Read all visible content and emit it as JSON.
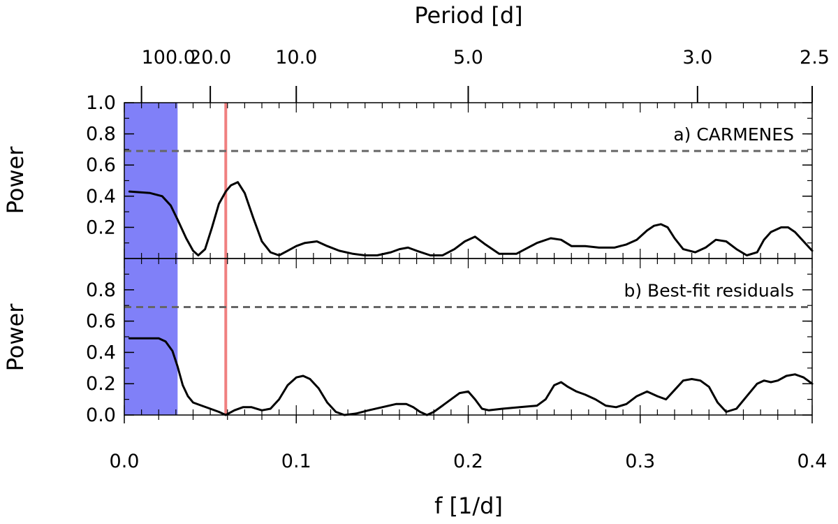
{
  "chart_data": {
    "type": "line",
    "top_axis": {
      "label": "Period [d]",
      "ticks": [
        {
          "period": 100.0,
          "label": "100.0"
        },
        {
          "period": 20.0,
          "label": "20.0"
        },
        {
          "period": 10.0,
          "label": "10.0"
        },
        {
          "period": 5.0,
          "label": "5.0"
        },
        {
          "period": 3.0,
          "label": "3.0"
        },
        {
          "period": 2.5,
          "label": "2.5"
        }
      ]
    },
    "x_axis": {
      "label": "f [1/d]",
      "xlim": [
        0.0,
        0.4
      ],
      "ticks": [
        {
          "value": 0.0,
          "label": "0.0"
        },
        {
          "value": 0.1,
          "label": "0.1"
        },
        {
          "value": 0.2,
          "label": "0.2"
        },
        {
          "value": 0.3,
          "label": "0.3"
        },
        {
          "value": 0.4,
          "label": "0.4"
        }
      ]
    },
    "shaded_band": {
      "x_from": 0.0,
      "x_to": 0.031,
      "color": "#8080f8"
    },
    "marker_line": {
      "x": 0.059,
      "color": "#f08080"
    },
    "panels": [
      {
        "label": "a) CARMENES",
        "ylabel": "Power",
        "ylim": [
          0.0,
          1.0
        ],
        "yticks": [
          {
            "value": 0.2,
            "label": "0.2"
          },
          {
            "value": 0.4,
            "label": "0.4"
          },
          {
            "value": 0.6,
            "label": "0.6"
          },
          {
            "value": 0.8,
            "label": "0.8"
          },
          {
            "value": 1.0,
            "label": "1.0"
          }
        ],
        "threshold": 0.69,
        "series": {
          "name": "CARMENES",
          "x": [
            0.003,
            0.015,
            0.022,
            0.027,
            0.031,
            0.036,
            0.04,
            0.043,
            0.047,
            0.051,
            0.055,
            0.059,
            0.062,
            0.066,
            0.07,
            0.075,
            0.08,
            0.085,
            0.09,
            0.095,
            0.1,
            0.105,
            0.112,
            0.118,
            0.125,
            0.133,
            0.14,
            0.147,
            0.155,
            0.16,
            0.165,
            0.17,
            0.178,
            0.185,
            0.192,
            0.198,
            0.204,
            0.21,
            0.218,
            0.228,
            0.24,
            0.248,
            0.254,
            0.26,
            0.268,
            0.276,
            0.285,
            0.292,
            0.298,
            0.304,
            0.308,
            0.312,
            0.316,
            0.32,
            0.325,
            0.332,
            0.338,
            0.344,
            0.35,
            0.356,
            0.362,
            0.368,
            0.372,
            0.376,
            0.382,
            0.386,
            0.39,
            0.395,
            0.4
          ],
          "y": [
            0.43,
            0.42,
            0.4,
            0.34,
            0.25,
            0.13,
            0.05,
            0.02,
            0.06,
            0.2,
            0.35,
            0.43,
            0.47,
            0.49,
            0.42,
            0.26,
            0.11,
            0.04,
            0.02,
            0.05,
            0.08,
            0.1,
            0.11,
            0.08,
            0.05,
            0.03,
            0.02,
            0.02,
            0.04,
            0.06,
            0.07,
            0.05,
            0.02,
            0.02,
            0.06,
            0.11,
            0.14,
            0.09,
            0.03,
            0.03,
            0.1,
            0.13,
            0.12,
            0.08,
            0.08,
            0.07,
            0.07,
            0.09,
            0.12,
            0.18,
            0.21,
            0.22,
            0.2,
            0.13,
            0.06,
            0.04,
            0.07,
            0.12,
            0.11,
            0.06,
            0.02,
            0.04,
            0.12,
            0.17,
            0.2,
            0.2,
            0.17,
            0.11,
            0.05
          ]
        }
      },
      {
        "label": "b) Best-fit residuals",
        "ylabel": "Power",
        "ylim": [
          0.0,
          1.0
        ],
        "yticks": [
          {
            "value": 0.0,
            "label": "0.0"
          },
          {
            "value": 0.2,
            "label": "0.2"
          },
          {
            "value": 0.4,
            "label": "0.4"
          },
          {
            "value": 0.6,
            "label": "0.6"
          },
          {
            "value": 0.8,
            "label": "0.8"
          }
        ],
        "threshold": 0.69,
        "series": {
          "name": "Best-fit residuals",
          "x": [
            0.003,
            0.012,
            0.02,
            0.024,
            0.028,
            0.031,
            0.034,
            0.037,
            0.04,
            0.045,
            0.05,
            0.055,
            0.059,
            0.064,
            0.069,
            0.074,
            0.08,
            0.085,
            0.09,
            0.095,
            0.1,
            0.104,
            0.108,
            0.113,
            0.118,
            0.123,
            0.128,
            0.135,
            0.142,
            0.15,
            0.158,
            0.164,
            0.168,
            0.172,
            0.176,
            0.18,
            0.185,
            0.19,
            0.195,
            0.2,
            0.204,
            0.208,
            0.212,
            0.22,
            0.23,
            0.24,
            0.245,
            0.25,
            0.254,
            0.258,
            0.263,
            0.268,
            0.274,
            0.28,
            0.286,
            0.292,
            0.298,
            0.304,
            0.31,
            0.315,
            0.32,
            0.325,
            0.33,
            0.335,
            0.34,
            0.345,
            0.35,
            0.356,
            0.362,
            0.368,
            0.372,
            0.376,
            0.38,
            0.385,
            0.39,
            0.395,
            0.4
          ],
          "y": [
            0.49,
            0.49,
            0.49,
            0.47,
            0.41,
            0.31,
            0.19,
            0.12,
            0.08,
            0.06,
            0.04,
            0.02,
            0.0,
            0.03,
            0.05,
            0.05,
            0.03,
            0.04,
            0.1,
            0.19,
            0.24,
            0.25,
            0.23,
            0.17,
            0.08,
            0.02,
            0.0,
            0.01,
            0.03,
            0.05,
            0.07,
            0.07,
            0.05,
            0.02,
            0.0,
            0.02,
            0.06,
            0.1,
            0.14,
            0.15,
            0.1,
            0.04,
            0.03,
            0.04,
            0.05,
            0.06,
            0.1,
            0.19,
            0.21,
            0.18,
            0.15,
            0.13,
            0.1,
            0.06,
            0.05,
            0.07,
            0.12,
            0.15,
            0.12,
            0.1,
            0.16,
            0.22,
            0.23,
            0.22,
            0.18,
            0.08,
            0.02,
            0.04,
            0.12,
            0.2,
            0.22,
            0.21,
            0.22,
            0.25,
            0.26,
            0.24,
            0.2
          ]
        }
      }
    ]
  }
}
